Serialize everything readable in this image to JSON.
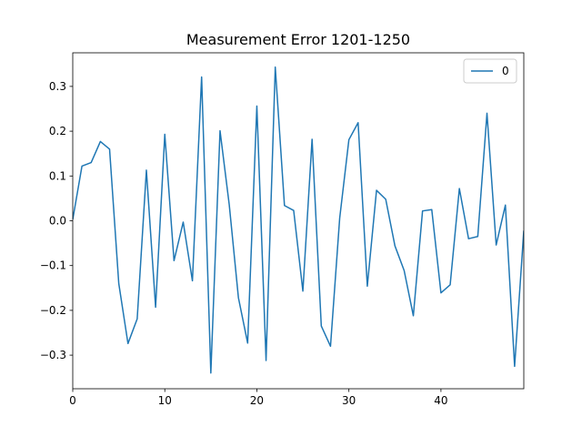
{
  "chart_data": {
    "type": "line",
    "title": "Measurement Error 1201-1250",
    "xlabel": "",
    "ylabel": "",
    "xlim": [
      0,
      49
    ],
    "ylim": [
      -0.375,
      0.375
    ],
    "x_ticks": [
      0,
      10,
      20,
      30,
      40
    ],
    "x_tick_labels": [
      "0",
      "10",
      "20",
      "30",
      "40"
    ],
    "y_ticks": [
      -0.3,
      -0.2,
      -0.1,
      0.0,
      0.1,
      0.2,
      0.3
    ],
    "y_tick_labels": [
      "−0.3",
      "−0.2",
      "−0.1",
      "0.0",
      "0.1",
      "0.2",
      "0.3"
    ],
    "grid": false,
    "legend_position": "top-right",
    "series": [
      {
        "name": "0",
        "color": "#1f77b4",
        "x": [
          0,
          1,
          2,
          3,
          4,
          5,
          6,
          7,
          8,
          9,
          10,
          11,
          12,
          13,
          14,
          15,
          16,
          17,
          18,
          19,
          20,
          21,
          22,
          23,
          24,
          25,
          26,
          27,
          28,
          29,
          30,
          31,
          32,
          33,
          34,
          35,
          36,
          37,
          38,
          39,
          40,
          41,
          42,
          43,
          44,
          45,
          46,
          47,
          48,
          49
        ],
        "values": [
          0.003,
          0.122,
          0.13,
          0.177,
          0.16,
          -0.14,
          -0.274,
          -0.219,
          0.113,
          -0.193,
          0.193,
          -0.089,
          -0.003,
          -0.134,
          0.321,
          -0.34,
          0.201,
          0.036,
          -0.172,
          -0.273,
          0.256,
          -0.312,
          0.343,
          0.034,
          0.023,
          -0.157,
          0.182,
          -0.235,
          -0.28,
          0.006,
          0.181,
          0.219,
          -0.146,
          0.068,
          0.048,
          -0.056,
          -0.111,
          -0.212,
          0.022,
          0.025,
          -0.161,
          -0.143,
          0.072,
          -0.04,
          -0.035,
          0.24,
          -0.054,
          0.035,
          -0.325,
          -0.022
        ]
      }
    ]
  }
}
